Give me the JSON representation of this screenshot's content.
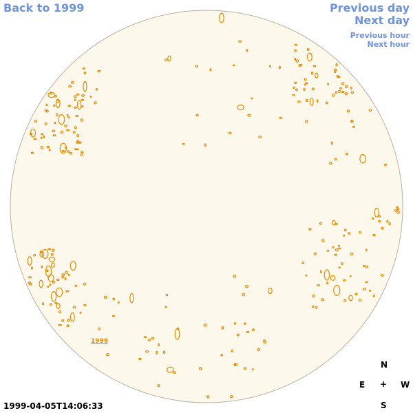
{
  "nav": {
    "back": "Back to 1999",
    "previous_day": "Previous day",
    "next_day": "Next day",
    "previous_hour": "Previous hour",
    "next_hour": "Next hour"
  },
  "timestamp": "1999-04-05T14:06:33",
  "map_label": "1999",
  "compass": {
    "n": "N",
    "e": "E",
    "center": "+",
    "w": "W",
    "s": "S"
  },
  "colors": {
    "link": "#6f93df",
    "disk_fill": "#fdf8ec",
    "disk_border": "#b8b0a0",
    "contour": "#e88b00"
  }
}
